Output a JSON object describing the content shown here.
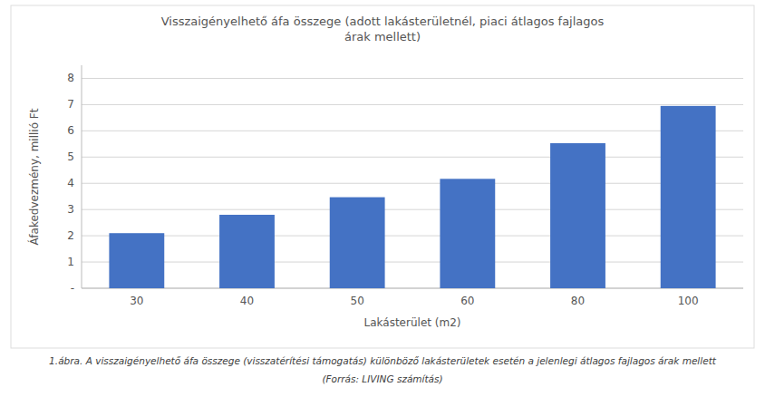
{
  "chart_data": {
    "type": "bar",
    "title": "Visszaigényelhető áfa összege (adott lakásterületnél, piaci átlagos fajlagos\nárak mellett)",
    "xlabel": "Lakásterület (m2)",
    "ylabel": "Áfakedvezmény, millió Ft",
    "categories": [
      "30",
      "40",
      "50",
      "60",
      "80",
      "100"
    ],
    "values": [
      2.1,
      2.8,
      3.47,
      4.17,
      5.53,
      6.95
    ],
    "color": "#4472C4",
    "ylim": [
      0,
      8.5
    ],
    "yticks": [
      {
        "value": 0,
        "label": "-"
      },
      1,
      2,
      3,
      4,
      5,
      6,
      7,
      8
    ],
    "grid": true,
    "annotations": [
      "1.ábra. A visszaigényelhető áfa összege (visszatérítési támogatás) különböző lakásterületek esetén a jelenlegi átlagos fajlagos árak mellett",
      "(Forrás: LIVING számítás)"
    ]
  }
}
